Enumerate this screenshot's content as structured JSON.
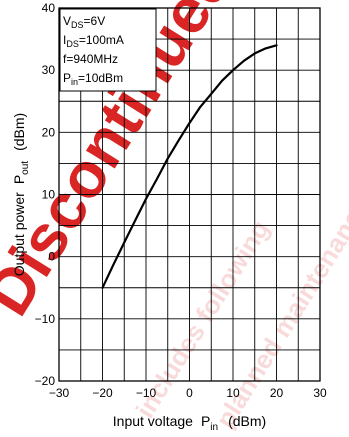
{
  "chart_data": {
    "type": "line",
    "xlabel": {
      "main": "Input voltage",
      "symbol": "P",
      "sub": "in",
      "unit": "(dBm)"
    },
    "ylabel": {
      "main": "Output power",
      "symbol": "P",
      "sub": "out",
      "unit": "(dBm)"
    },
    "xlim": [
      -30,
      30
    ],
    "ylim": [
      -20,
      40
    ],
    "x_grid_step": 5,
    "y_grid_step": 5,
    "x_ticks": [
      -30,
      -20,
      -10,
      0,
      10,
      20,
      30
    ],
    "y_ticks": [
      -20,
      -10,
      0,
      10,
      20,
      30,
      40
    ],
    "x_tick_labels": [
      "−30",
      "−20",
      "−10",
      "0",
      "10",
      "20",
      "30"
    ],
    "y_tick_labels": [
      "−20",
      "−10",
      "0",
      "10",
      "20",
      "30",
      "40"
    ],
    "grid": true,
    "line_color": "#000000",
    "series": [
      {
        "x": [
          -20,
          -17.5,
          -15,
          -12.5,
          -10,
          -7.5,
          -5,
          -2.5,
          0,
          2.5,
          5,
          7.5,
          10,
          12.5,
          15,
          17.5,
          20
        ],
        "y": [
          -5,
          -1.3,
          2.3,
          5.8,
          9.3,
          12.5,
          15.8,
          18.7,
          21.5,
          24.1,
          26.2,
          28.3,
          30.0,
          31.5,
          32.7,
          33.5,
          34.0
        ]
      }
    ],
    "legend_box": {
      "placement": "top-left",
      "lines": [
        {
          "main": "V",
          "sub": "DS",
          "rest": "=6V"
        },
        {
          "main": "I",
          "sub": "DS",
          "rest": "=100mA"
        },
        {
          "main": "f=940MHz",
          "sub": "",
          "rest": ""
        },
        {
          "main": "P",
          "sub": "in",
          "rest": "=10dBm"
        }
      ]
    }
  },
  "watermark": {
    "color": "#d40000",
    "texts": [
      "Discontinued",
      "includes following",
      "planned maintenance type"
    ]
  }
}
